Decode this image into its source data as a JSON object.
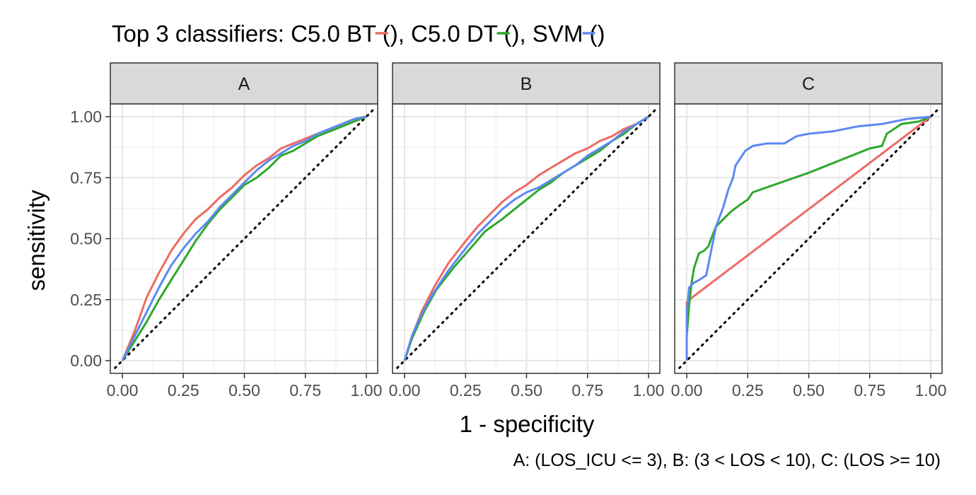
{
  "title": {
    "prefix": "Top 3 classifiers: ",
    "items": [
      {
        "label": "C5.0 BT (",
        "close": ")",
        "color": "#EE6A60"
      },
      {
        "label": ", C5.0 DT (",
        "close": ")",
        "color": "#2DA82C"
      },
      {
        "label": ", SVM (",
        "close": ")",
        "color": "#5E88F2"
      }
    ]
  },
  "caption": "A: (LOS_ICU <= 3), B: (3 < LOS < 10), C: (LOS >= 10)",
  "chart_data": {
    "type": "line",
    "xlabel": "1 - specificity",
    "ylabel": "sensitivity",
    "xlim": [
      0,
      1
    ],
    "ylim": [
      0,
      1
    ],
    "x_ticks": [
      "0.00",
      "0.25",
      "0.50",
      "0.75",
      "1.00"
    ],
    "y_ticks": [
      "0.00",
      "0.25",
      "0.50",
      "0.75",
      "1.00"
    ],
    "reference_line": "dotted diagonal (chance)",
    "grid": true,
    "panels": [
      {
        "label": "A",
        "series": [
          {
            "name": "C5.0 BT",
            "color": "#EE6A60",
            "points": [
              [
                0,
                0
              ],
              [
                0.05,
                0.12
              ],
              [
                0.1,
                0.26
              ],
              [
                0.15,
                0.36
              ],
              [
                0.2,
                0.45
              ],
              [
                0.25,
                0.52
              ],
              [
                0.3,
                0.58
              ],
              [
                0.35,
                0.62
              ],
              [
                0.4,
                0.67
              ],
              [
                0.45,
                0.71
              ],
              [
                0.5,
                0.76
              ],
              [
                0.55,
                0.8
              ],
              [
                0.6,
                0.83
              ],
              [
                0.65,
                0.87
              ],
              [
                0.7,
                0.89
              ],
              [
                0.75,
                0.91
              ],
              [
                0.8,
                0.93
              ],
              [
                0.85,
                0.95
              ],
              [
                0.9,
                0.97
              ],
              [
                0.95,
                0.99
              ],
              [
                1,
                1
              ]
            ]
          },
          {
            "name": "C5.0 DT",
            "color": "#2DA82C",
            "points": [
              [
                0,
                0
              ],
              [
                0.05,
                0.08
              ],
              [
                0.1,
                0.16
              ],
              [
                0.15,
                0.25
              ],
              [
                0.2,
                0.33
              ],
              [
                0.25,
                0.41
              ],
              [
                0.3,
                0.49
              ],
              [
                0.35,
                0.56
              ],
              [
                0.4,
                0.62
              ],
              [
                0.45,
                0.67
              ],
              [
                0.5,
                0.72
              ],
              [
                0.55,
                0.75
              ],
              [
                0.6,
                0.79
              ],
              [
                0.65,
                0.84
              ],
              [
                0.7,
                0.86
              ],
              [
                0.75,
                0.89
              ],
              [
                0.8,
                0.92
              ],
              [
                0.85,
                0.94
              ],
              [
                0.9,
                0.96
              ],
              [
                0.95,
                0.98
              ],
              [
                1,
                1
              ]
            ]
          },
          {
            "name": "SVM",
            "color": "#5E88F2",
            "points": [
              [
                0,
                0
              ],
              [
                0.05,
                0.1
              ],
              [
                0.1,
                0.2
              ],
              [
                0.15,
                0.3
              ],
              [
                0.2,
                0.39
              ],
              [
                0.25,
                0.46
              ],
              [
                0.3,
                0.52
              ],
              [
                0.35,
                0.57
              ],
              [
                0.4,
                0.63
              ],
              [
                0.45,
                0.68
              ],
              [
                0.5,
                0.73
              ],
              [
                0.55,
                0.78
              ],
              [
                0.6,
                0.82
              ],
              [
                0.65,
                0.85
              ],
              [
                0.7,
                0.88
              ],
              [
                0.75,
                0.9
              ],
              [
                0.8,
                0.93
              ],
              [
                0.85,
                0.95
              ],
              [
                0.9,
                0.97
              ],
              [
                0.95,
                0.99
              ],
              [
                1,
                1
              ]
            ]
          }
        ]
      },
      {
        "label": "B",
        "series": [
          {
            "name": "C5.0 BT",
            "color": "#EE6A60",
            "points": [
              [
                0,
                0
              ],
              [
                0.03,
                0.1
              ],
              [
                0.07,
                0.2
              ],
              [
                0.12,
                0.3
              ],
              [
                0.18,
                0.4
              ],
              [
                0.25,
                0.49
              ],
              [
                0.3,
                0.55
              ],
              [
                0.35,
                0.6
              ],
              [
                0.4,
                0.65
              ],
              [
                0.45,
                0.69
              ],
              [
                0.5,
                0.72
              ],
              [
                0.55,
                0.76
              ],
              [
                0.6,
                0.79
              ],
              [
                0.65,
                0.82
              ],
              [
                0.7,
                0.85
              ],
              [
                0.75,
                0.87
              ],
              [
                0.8,
                0.9
              ],
              [
                0.85,
                0.92
              ],
              [
                0.9,
                0.95
              ],
              [
                0.95,
                0.97
              ],
              [
                1,
                1
              ]
            ]
          },
          {
            "name": "C5.0 DT",
            "color": "#2DA82C",
            "points": [
              [
                0,
                0
              ],
              [
                0.03,
                0.09
              ],
              [
                0.08,
                0.2
              ],
              [
                0.13,
                0.29
              ],
              [
                0.2,
                0.38
              ],
              [
                0.27,
                0.46
              ],
              [
                0.33,
                0.53
              ],
              [
                0.4,
                0.58
              ],
              [
                0.45,
                0.62
              ],
              [
                0.5,
                0.66
              ],
              [
                0.55,
                0.7
              ],
              [
                0.6,
                0.73
              ],
              [
                0.65,
                0.77
              ],
              [
                0.7,
                0.8
              ],
              [
                0.75,
                0.83
              ],
              [
                0.8,
                0.86
              ],
              [
                0.85,
                0.9
              ],
              [
                0.9,
                0.93
              ],
              [
                0.95,
                0.97
              ],
              [
                1,
                1
              ]
            ]
          },
          {
            "name": "SVM",
            "color": "#5E88F2",
            "points": [
              [
                0,
                0
              ],
              [
                0.03,
                0.1
              ],
              [
                0.07,
                0.19
              ],
              [
                0.12,
                0.28
              ],
              [
                0.18,
                0.37
              ],
              [
                0.25,
                0.46
              ],
              [
                0.3,
                0.52
              ],
              [
                0.35,
                0.57
              ],
              [
                0.4,
                0.62
              ],
              [
                0.45,
                0.66
              ],
              [
                0.5,
                0.69
              ],
              [
                0.55,
                0.71
              ],
              [
                0.6,
                0.74
              ],
              [
                0.65,
                0.77
              ],
              [
                0.7,
                0.8
              ],
              [
                0.75,
                0.84
              ],
              [
                0.8,
                0.87
              ],
              [
                0.85,
                0.9
              ],
              [
                0.9,
                0.94
              ],
              [
                0.95,
                0.97
              ],
              [
                1,
                1
              ]
            ]
          }
        ]
      },
      {
        "label": "C",
        "series": [
          {
            "name": "C5.0 BT",
            "color": "#EE6A60",
            "points": [
              [
                0,
                0
              ],
              [
                0,
                0.24
              ],
              [
                0.01,
                0.25
              ],
              [
                1,
                1
              ]
            ]
          },
          {
            "name": "C5.0 DT",
            "color": "#2DA82C",
            "points": [
              [
                0,
                0
              ],
              [
                0,
                0.1
              ],
              [
                0.01,
                0.23
              ],
              [
                0.02,
                0.32
              ],
              [
                0.03,
                0.38
              ],
              [
                0.04,
                0.41
              ],
              [
                0.05,
                0.44
              ],
              [
                0.07,
                0.45
              ],
              [
                0.09,
                0.47
              ],
              [
                0.1,
                0.5
              ],
              [
                0.12,
                0.55
              ],
              [
                0.15,
                0.58
              ],
              [
                0.18,
                0.61
              ],
              [
                0.22,
                0.64
              ],
              [
                0.25,
                0.66
              ],
              [
                0.27,
                0.69
              ],
              [
                0.5,
                0.77
              ],
              [
                0.75,
                0.87
              ],
              [
                0.8,
                0.88
              ],
              [
                0.82,
                0.93
              ],
              [
                0.85,
                0.95
              ],
              [
                0.88,
                0.97
              ],
              [
                0.95,
                0.98
              ],
              [
                1,
                1
              ]
            ]
          },
          {
            "name": "SVM",
            "color": "#5E88F2",
            "points": [
              [
                0,
                0
              ],
              [
                0,
                0.2
              ],
              [
                0.01,
                0.3
              ],
              [
                0.03,
                0.32
              ],
              [
                0.05,
                0.33
              ],
              [
                0.08,
                0.35
              ],
              [
                0.1,
                0.45
              ],
              [
                0.12,
                0.55
              ],
              [
                0.15,
                0.63
              ],
              [
                0.17,
                0.7
              ],
              [
                0.19,
                0.75
              ],
              [
                0.2,
                0.8
              ],
              [
                0.22,
                0.83
              ],
              [
                0.24,
                0.86
              ],
              [
                0.27,
                0.88
              ],
              [
                0.33,
                0.89
              ],
              [
                0.4,
                0.89
              ],
              [
                0.45,
                0.92
              ],
              [
                0.5,
                0.93
              ],
              [
                0.6,
                0.94
              ],
              [
                0.7,
                0.96
              ],
              [
                0.8,
                0.97
              ],
              [
                0.9,
                0.99
              ],
              [
                1,
                1
              ]
            ]
          }
        ]
      }
    ]
  }
}
